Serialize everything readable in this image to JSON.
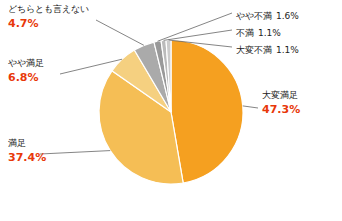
{
  "chart_data": {
    "type": "pie",
    "categories": [
      "大変満足",
      "満足",
      "やや満足",
      "どちらとも言えない",
      "やや不満",
      "不満",
      "大変不満"
    ],
    "values": [
      47.3,
      37.4,
      6.8,
      4.7,
      1.6,
      1.1,
      1.1
    ],
    "value_labels": [
      "47.3%",
      "37.4%",
      "6.8%",
      "4.7%",
      "1.6%",
      "1.1%",
      "1.1%"
    ],
    "colors": [
      "#F5A020",
      "#F5BE55",
      "#F5D080",
      "#AAAAAA",
      "#999999",
      "#BBBBBB",
      "#CCCCCC"
    ],
    "data_labels": true
  }
}
